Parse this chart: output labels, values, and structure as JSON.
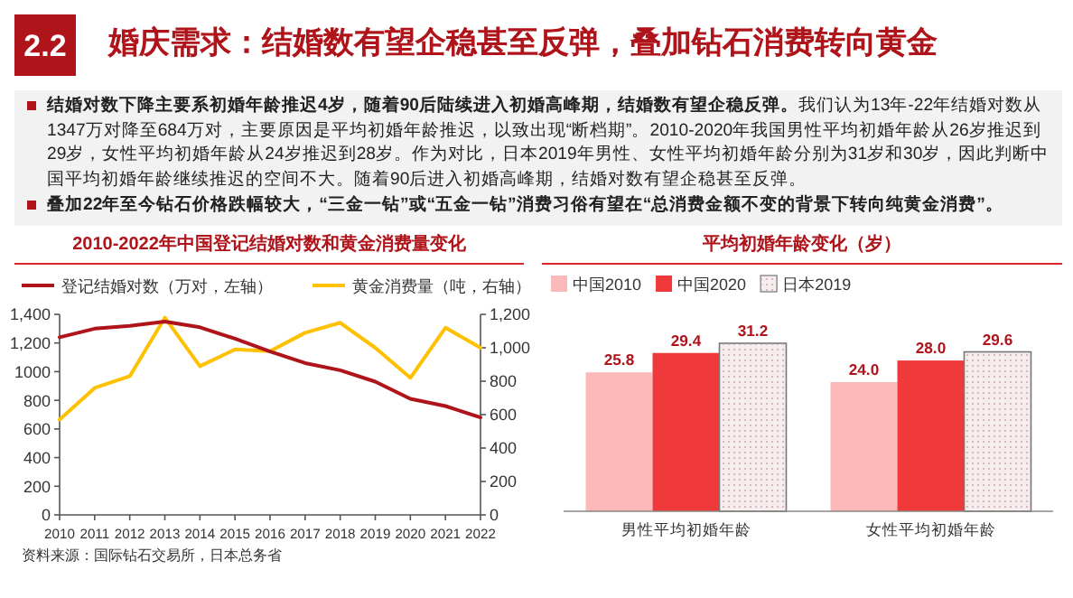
{
  "chart_data": [
    {
      "type": "other",
      "title": "婚庆需求：结婚数有望企稳甚至反弹，叠加钻石消费转向黄金",
      "annotations": [
        "2.2",
        "结婚对数下降主要系初婚年龄推迟4岁，随着90后陆续进入初婚高峰期，结婚数有望企稳反弹。",
        "我们认为13年-22年结婚对数从1347万对降至684万对，主要原因是平均初婚年龄推迟，以致出现“断档期”。2010-2020年我国男性平均初婚年龄从26岁推迟到29岁，女性平均初婚年龄从24岁推迟到28岁。作为对比，日本2019年男性、女性平均初婚年龄分别为31岁和30岁，因此判断中国平均初婚年龄继续推迟的空间不大。随着90后进入初婚高峰期，结婚对数有望企稳甚至反弹。",
        "叠加22年至今钻石价格跌幅较大，“三金一钻”或“五金一钻”消费习俗有望在“总消费金额不变的背景下转向纯黄金消费”。"
      ]
    },
    {
      "type": "line",
      "title": "2010-2022年中国登记结婚对数和黄金消费量变化",
      "categories": [
        "2010",
        "2011",
        "2012",
        "2013",
        "2014",
        "2015",
        "2016",
        "2017",
        "2018",
        "2019",
        "2020",
        "2021",
        "2022"
      ],
      "series": [
        {
          "name": "登记结婚对数（万对，左轴）",
          "color": "#b0141b",
          "values": [
            1240,
            1300,
            1320,
            1350,
            1310,
            1230,
            1140,
            1060,
            1010,
            930,
            810,
            760,
            680
          ]
        },
        {
          "name": "黄金消费量（吨，右轴）",
          "color": "#ffc000",
          "axis": "y2",
          "values": [
            570,
            760,
            830,
            1180,
            890,
            990,
            980,
            1090,
            1150,
            1000,
            820,
            1120,
            1000
          ]
        }
      ],
      "ylim": [
        0,
        1400
      ],
      "yticks": [
        0,
        200,
        400,
        600,
        800,
        1000,
        {
          "value": 1200,
          "label": "1,200"
        },
        {
          "value": 1400,
          "label": "1,400"
        }
      ],
      "y2lim": [
        0,
        1200
      ],
      "y2ticks": [
        0,
        200,
        400,
        600,
        800,
        {
          "value": 1000,
          "label": "1,000"
        },
        {
          "value": 1200,
          "label": "1,200"
        }
      ],
      "legend": "top left",
      "annotations": [
        "资料来源：国际钻石交易所，日本总务省"
      ]
    },
    {
      "type": "bar",
      "title": "平均初婚年龄变化（岁）",
      "categories": [
        "男性平均初婚年龄",
        "女性平均初婚年龄"
      ],
      "series": [
        {
          "name": "中国2010",
          "color": "#fbb9b9",
          "values": [
            25.8,
            24.0
          ],
          "value_labels": [
            "25.8",
            "24.0"
          ]
        },
        {
          "name": "中国2020",
          "color": "#f0393b",
          "values": [
            29.4,
            28.0
          ],
          "value_labels": [
            "29.4",
            "28.0"
          ]
        },
        {
          "name": "日本2019",
          "color": "#f6eeee",
          "values": [
            31.2,
            29.6
          ],
          "value_labels": [
            "31.2",
            "29.6"
          ]
        }
      ],
      "legend": "top left"
    }
  ]
}
